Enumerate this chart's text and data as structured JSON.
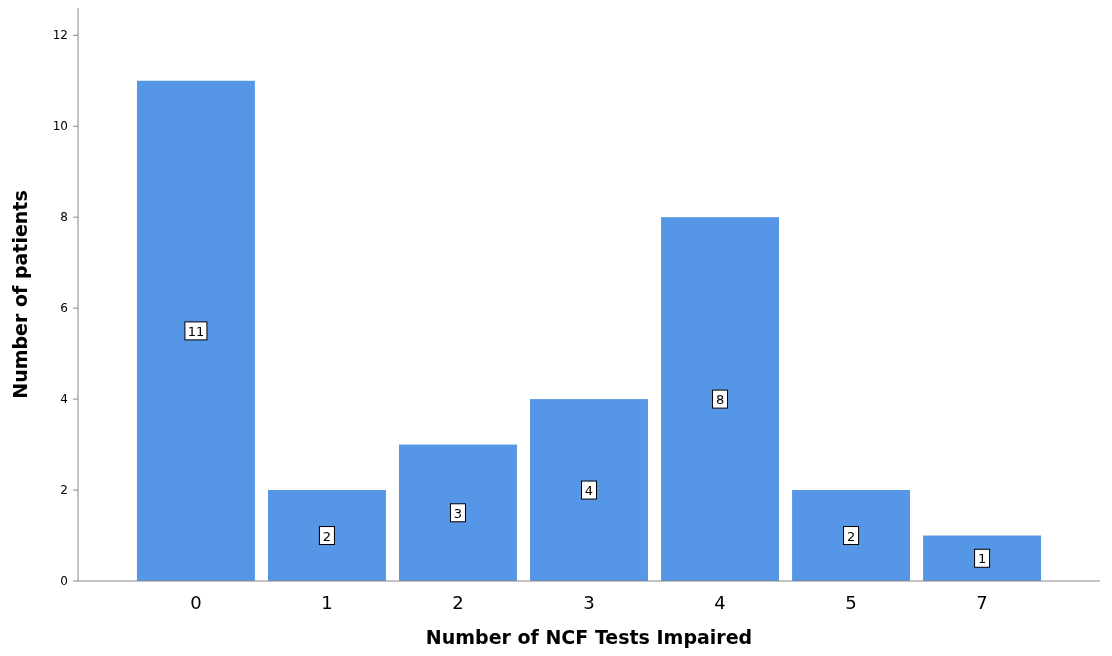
{
  "chart_data": {
    "type": "bar",
    "xlabel": "Number of NCF Tests Impaired",
    "ylabel": "Number of patients",
    "categories": [
      "0",
      "1",
      "2",
      "3",
      "4",
      "5",
      "7"
    ],
    "values": [
      11,
      2,
      3,
      4,
      8,
      2,
      1
    ],
    "color": "#5596e6",
    "ylim": [
      0,
      12.6
    ],
    "yticks": [
      0,
      2,
      4,
      6,
      8,
      10,
      12
    ],
    "grid": false,
    "data_labels": true
  }
}
